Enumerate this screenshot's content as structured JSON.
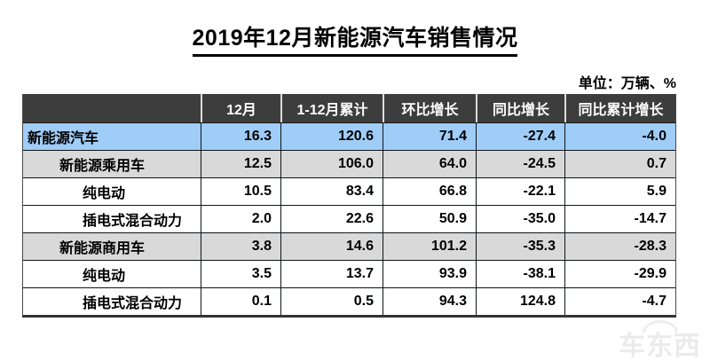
{
  "page": {
    "title": "2019年12月新能源汽车销售情况",
    "unit_label": "单位：万辆、%"
  },
  "chart_data": {
    "type": "table",
    "title": "2019年12月新能源汽车销售情况",
    "unit": "万辆、%",
    "columns": [
      "",
      "12月",
      "1-12月累计",
      "环比增长",
      "同比增长",
      "同比累计增长"
    ],
    "rows": [
      {
        "label": "新能源汽车",
        "indent": 0,
        "highlight": "blue",
        "values": [
          "16.3",
          "120.6",
          "71.4",
          "-27.4",
          "-4.0"
        ]
      },
      {
        "label": "新能源乘用车",
        "indent": 1,
        "highlight": "gray",
        "values": [
          "12.5",
          "106.0",
          "64.0",
          "-24.5",
          "0.7"
        ]
      },
      {
        "label": "纯电动",
        "indent": 2,
        "highlight": "none",
        "values": [
          "10.5",
          "83.4",
          "66.8",
          "-22.1",
          "5.9"
        ]
      },
      {
        "label": "插电式混合动力",
        "indent": 2,
        "highlight": "none",
        "values": [
          "2.0",
          "22.6",
          "50.9",
          "-35.0",
          "-14.7"
        ]
      },
      {
        "label": "新能源商用车",
        "indent": 1,
        "highlight": "gray",
        "values": [
          "3.8",
          "14.6",
          "101.2",
          "-35.3",
          "-28.3"
        ]
      },
      {
        "label": "纯电动",
        "indent": 2,
        "highlight": "none",
        "values": [
          "3.5",
          "13.7",
          "93.9",
          "-38.1",
          "-29.9"
        ]
      },
      {
        "label": "插电式混合动力",
        "indent": 2,
        "highlight": "none",
        "values": [
          "0.1",
          "0.5",
          "94.3",
          "124.8",
          "-4.7"
        ]
      }
    ]
  },
  "watermark": {
    "text": "车东西",
    "crown_icon": "crown-arc"
  },
  "colors": {
    "header_bg": "#3d3d3d",
    "header_text": "#ffffff",
    "row_highlight_blue": "#9fcdf8",
    "row_subtotal_gray": "#d9d9d9",
    "grid_border": "#101418",
    "watermark_gray": "#ebebeb"
  }
}
